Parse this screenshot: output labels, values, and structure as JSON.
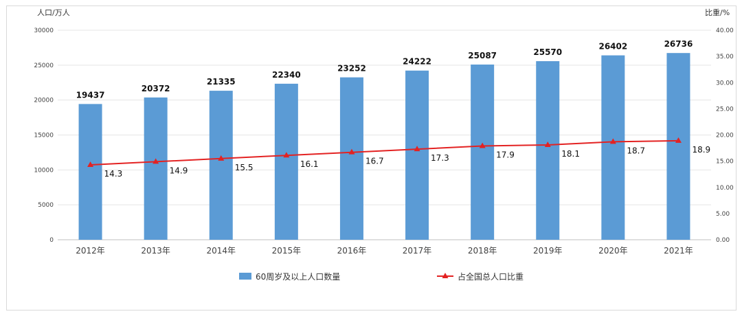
{
  "chart_data": {
    "type": "bar",
    "left_axis_unit": "人口/万人",
    "right_axis_unit": "比重/%",
    "categories": [
      "2012年",
      "2013年",
      "2014年",
      "2015年",
      "2016年",
      "2017年",
      "2018年",
      "2019年",
      "2020年",
      "2021年"
    ],
    "series": [
      {
        "name": "60周岁及以上人口数量",
        "type": "bar",
        "axis": "left",
        "color": "#5b9bd5",
        "values": [
          19437,
          20372,
          21335,
          22340,
          23252,
          24222,
          25087,
          25570,
          26402,
          26736
        ]
      },
      {
        "name": "占全国总人口比重",
        "type": "line",
        "axis": "right",
        "color": "#e32222",
        "marker": "triangle",
        "values": [
          14.3,
          14.9,
          15.5,
          16.1,
          16.7,
          17.3,
          17.9,
          18.1,
          18.7,
          18.9
        ]
      }
    ],
    "ylim": [
      0,
      30000
    ],
    "yticks": [
      "0",
      "5000",
      "10000",
      "15000",
      "20000",
      "25000",
      "30000"
    ],
    "y2lim": [
      0,
      40
    ],
    "y2ticks": [
      "0.00",
      "5.00",
      "10.00",
      "15.00",
      "20.00",
      "25.00",
      "30.00",
      "35.00",
      "40.00"
    ],
    "grid": true,
    "legend_position": "bottom"
  }
}
